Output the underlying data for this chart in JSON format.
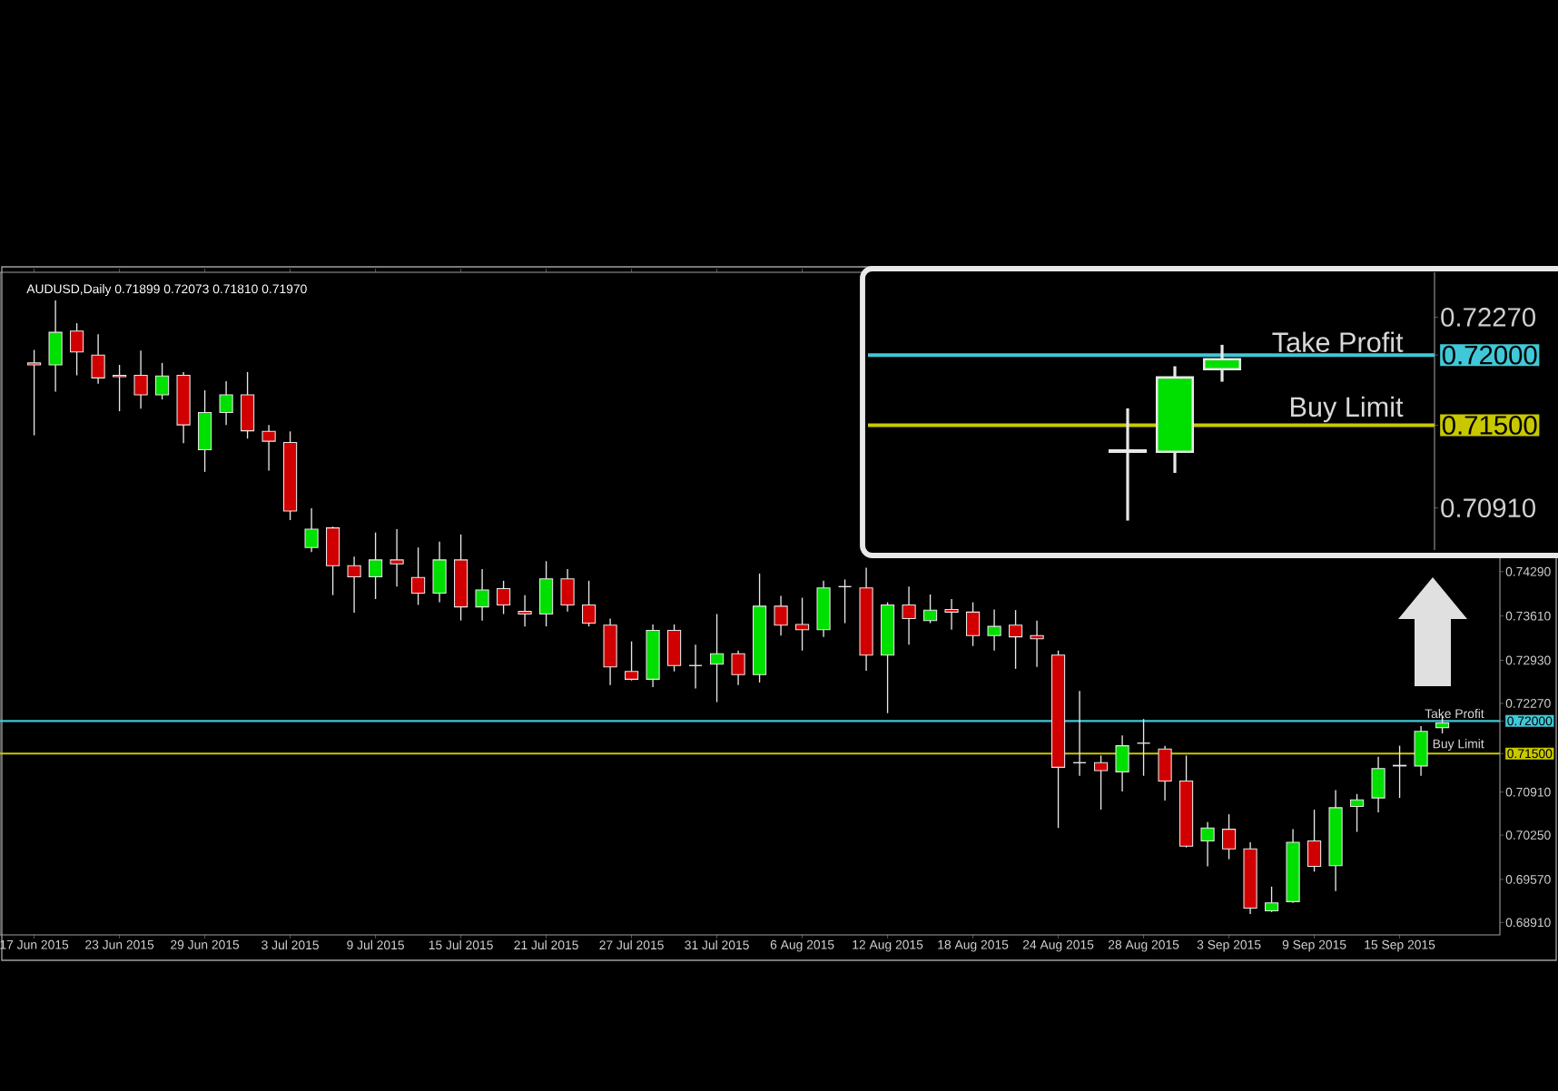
{
  "chart_data": [
    {
      "type": "candlestick",
      "title": "AUDUSD,Daily 0.71899 0.72073 0.71810 0.71970",
      "categories": [
        "17 Jun 2015",
        null,
        null,
        null,
        "23 Jun 2015",
        null,
        null,
        null,
        "29 Jun 2015",
        null,
        null,
        null,
        "3 Jul 2015",
        null,
        null,
        null,
        "9 Jul 2015",
        null,
        null,
        null,
        "15 Jul 2015",
        null,
        null,
        null,
        "21 Jul 2015",
        null,
        null,
        null,
        "27 Jul 2015",
        null,
        null,
        null,
        "31 Jul 2015",
        null,
        null,
        null,
        "6 Aug 2015",
        null,
        null,
        null,
        "12 Aug 2015",
        null,
        null,
        null,
        "18 Aug 2015",
        null,
        null,
        null,
        "24 Aug 2015",
        null,
        null,
        null,
        "28 Aug 2015",
        null,
        null,
        null,
        "3 Sep 2015",
        null,
        null,
        null,
        "9 Sep 2015",
        null,
        null,
        null,
        "15 Sep 2015",
        null,
        null
      ],
      "ohlc": [
        [
          0.7749,
          0.7769,
          0.7638,
          0.7746
        ],
        [
          0.7746,
          0.7845,
          0.7705,
          0.7796
        ],
        [
          0.7798,
          0.781,
          0.773,
          0.7766
        ],
        [
          0.7761,
          0.7793,
          0.7717,
          0.7726
        ],
        [
          0.773,
          0.7746,
          0.7675,
          0.7728
        ],
        [
          0.773,
          0.7768,
          0.7679,
          0.77
        ],
        [
          0.77,
          0.7749,
          0.7693,
          0.7729
        ],
        [
          0.773,
          0.7735,
          0.7626,
          0.7654
        ],
        [
          0.7616,
          0.7707,
          0.7582,
          0.7673
        ],
        [
          0.7673,
          0.7721,
          0.7654,
          0.77
        ],
        [
          0.77,
          0.7735,
          0.7633,
          0.7645
        ],
        [
          0.7644,
          0.7654,
          0.7584,
          0.7629
        ],
        [
          0.7627,
          0.7644,
          0.7508,
          0.7522
        ],
        [
          0.7466,
          0.7526,
          0.7459,
          0.7494
        ],
        [
          0.7496,
          0.7498,
          0.7393,
          0.7438
        ],
        [
          0.7438,
          0.7452,
          0.7366,
          0.7421
        ],
        [
          0.7421,
          0.7489,
          0.7387,
          0.7447
        ],
        [
          0.7447,
          0.7494,
          0.7406,
          0.7441
        ],
        [
          0.742,
          0.7466,
          0.7378,
          0.7396
        ],
        [
          0.7396,
          0.7475,
          0.7382,
          0.7447
        ],
        [
          0.7447,
          0.7486,
          0.7354,
          0.7375
        ],
        [
          0.7375,
          0.7433,
          0.7354,
          0.7401
        ],
        [
          0.7403,
          0.7415,
          0.7364,
          0.7378
        ],
        [
          0.7368,
          0.7393,
          0.7345,
          0.7364
        ],
        [
          0.7364,
          0.7445,
          0.7345,
          0.7418
        ],
        [
          0.7418,
          0.7433,
          0.7368,
          0.7378
        ],
        [
          0.7378,
          0.7415,
          0.7345,
          0.735
        ],
        [
          0.7347,
          0.7357,
          0.7255,
          0.7283
        ],
        [
          0.7276,
          0.7322,
          0.7262,
          0.7264
        ],
        [
          0.7264,
          0.7348,
          0.7252,
          0.7339
        ],
        [
          0.7339,
          0.7348,
          0.7276,
          0.7285
        ],
        [
          0.7285,
          0.7317,
          0.725,
          0.7285
        ],
        [
          0.7287,
          0.7364,
          0.7229,
          0.7303
        ],
        [
          0.7303,
          0.7308,
          0.7255,
          0.7271
        ],
        [
          0.7271,
          0.7426,
          0.7259,
          0.7376
        ],
        [
          0.7376,
          0.7392,
          0.7331,
          0.7347
        ],
        [
          0.7348,
          0.7389,
          0.7308,
          0.734
        ],
        [
          0.734,
          0.7415,
          0.7329,
          0.7404
        ],
        [
          0.7406,
          0.7417,
          0.735,
          0.7406
        ],
        [
          0.7404,
          0.7435,
          0.7277,
          0.7301
        ],
        [
          0.7301,
          0.7382,
          0.7212,
          0.7378
        ],
        [
          0.7378,
          0.7406,
          0.7317,
          0.7357
        ],
        [
          0.7354,
          0.7394,
          0.735,
          0.737
        ],
        [
          0.7371,
          0.7387,
          0.734,
          0.7367
        ],
        [
          0.7367,
          0.7382,
          0.7315,
          0.7331
        ],
        [
          0.7331,
          0.7371,
          0.7308,
          0.7345
        ],
        [
          0.7347,
          0.737,
          0.728,
          0.7329
        ],
        [
          0.7331,
          0.7354,
          0.7283,
          0.7326
        ],
        [
          0.7301,
          0.7308,
          0.7036,
          0.7129
        ],
        [
          0.7136,
          0.7246,
          0.7116,
          0.7136
        ],
        [
          0.7136,
          0.7147,
          0.7064,
          0.7124
        ],
        [
          0.7122,
          0.7178,
          0.7092,
          0.7162
        ],
        [
          0.7166,
          0.7203,
          0.7116,
          0.7166
        ],
        [
          0.7157,
          0.7162,
          0.7078,
          0.7108
        ],
        [
          0.7108,
          0.7147,
          0.7006,
          0.7008
        ],
        [
          0.7016,
          0.7045,
          0.6977,
          0.7036
        ],
        [
          0.7034,
          0.7057,
          0.6988,
          0.7004
        ],
        [
          0.7004,
          0.7014,
          0.6904,
          0.6913
        ],
        [
          0.6909,
          0.6946,
          0.6907,
          0.6921
        ],
        [
          0.6923,
          0.7034,
          0.6921,
          0.7014
        ],
        [
          0.7016,
          0.7064,
          0.6969,
          0.6977
        ],
        [
          0.6978,
          0.7094,
          0.6939,
          0.7067
        ],
        [
          0.7069,
          0.7088,
          0.703,
          0.7079
        ],
        [
          0.7082,
          0.7145,
          0.706,
          0.7127
        ],
        [
          0.7131,
          0.7162,
          0.7082,
          0.7132
        ],
        [
          0.7131,
          0.7192,
          0.7116,
          0.7184
        ],
        [
          0.71899,
          0.72073,
          0.7181,
          0.7197
        ]
      ],
      "ylim": [
        0.6872,
        0.7888
      ],
      "yticks": [
        {
          "value": 0.7429,
          "label": "0.74290"
        },
        {
          "value": 0.7361,
          "label": "0.73610"
        },
        {
          "value": 0.7293,
          "label": "0.72930"
        },
        {
          "value": 0.7227,
          "label": "0.72270"
        },
        {
          "value": 0.72,
          "label": "0.72000"
        },
        {
          "value": 0.715,
          "label": "0.71500"
        },
        {
          "value": 0.7091,
          "label": "0.70910"
        },
        {
          "value": 0.7025,
          "label": "0.70250"
        },
        {
          "value": 0.6957,
          "label": "0.69570"
        },
        {
          "value": 0.6891,
          "label": "0.68910"
        }
      ],
      "ref_lines": [
        {
          "axis": "y",
          "value": 0.72,
          "label": "Take Profit",
          "color": "#40c8d8"
        },
        {
          "axis": "y",
          "value": 0.715,
          "label": "Buy Limit",
          "color": "#c8c800"
        }
      ]
    },
    {
      "type": "candlestick",
      "categories": [
        null,
        null,
        null,
        null,
        null,
        null,
        null,
        null,
        null,
        null,
        null,
        null
      ],
      "ohlc": [
        null,
        null,
        null,
        null,
        null,
        [
          0.7131,
          0.7162,
          0.7082,
          0.7132
        ],
        [
          0.7131,
          0.7192,
          0.7116,
          0.7184
        ],
        [
          0.71899,
          0.72073,
          0.7181,
          0.7197
        ],
        null,
        null,
        null,
        null
      ],
      "ylim": [
        0.7061,
        0.7259
      ],
      "yticks": [
        {
          "value": 0.7227,
          "label": "0.72270"
        },
        {
          "value": 0.72,
          "label": "0.72000"
        },
        {
          "value": 0.715,
          "label": "0.71500"
        },
        {
          "value": 0.7091,
          "label": "0.70910"
        }
      ],
      "tick_labels": "y",
      "ref_lines": [
        {
          "axis": "y",
          "value": 0.72,
          "label": "Take Profit",
          "color": "#40c8d8"
        },
        {
          "axis": "y",
          "value": 0.715,
          "label": "Buy Limit",
          "color": "#c8c800"
        }
      ]
    }
  ]
}
